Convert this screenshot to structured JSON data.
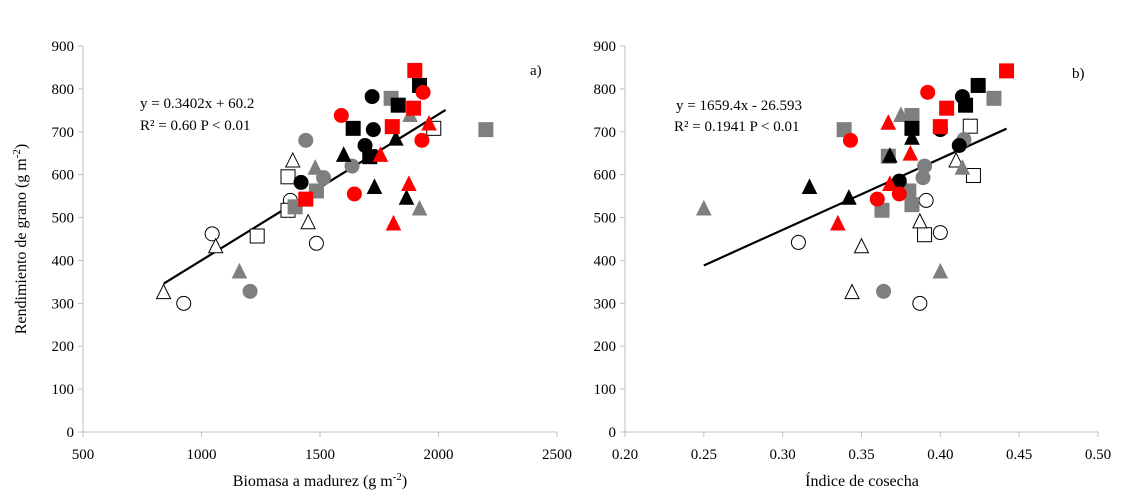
{
  "chart_data": [
    {
      "type": "scatter",
      "panel_label": "a)",
      "xlabel": "Biomasa  a madurez (g m",
      "xlabel_sup": "-2",
      "xlabel_close": ")",
      "ylabel": "Rendimiento de grano (g m",
      "ylabel_sup": "-2",
      "ylabel_close": ")",
      "xlim": [
        500,
        2500
      ],
      "ylim": [
        0,
        900
      ],
      "xticks": [
        500,
        1000,
        1500,
        2000,
        2500
      ],
      "yticks": [
        0,
        100,
        200,
        300,
        400,
        500,
        600,
        700,
        800,
        900
      ],
      "equation": "y = 0.3402x + 60.2",
      "r2_text": "R² = 0.60 P < 0.01",
      "trendline": {
        "x": [
          840,
          2030
        ],
        "y": [
          345.9,
          750.8
        ]
      },
      "points": [
        {
          "x": 925,
          "y": 300,
          "shape": "circle",
          "color": "open"
        },
        {
          "x": 1045,
          "y": 462,
          "shape": "circle",
          "color": "open"
        },
        {
          "x": 1375,
          "y": 540,
          "shape": "circle",
          "color": "open"
        },
        {
          "x": 1485,
          "y": 440,
          "shape": "circle",
          "color": "open"
        },
        {
          "x": 1235,
          "y": 457,
          "shape": "square",
          "color": "open"
        },
        {
          "x": 1365,
          "y": 595,
          "shape": "square",
          "color": "open"
        },
        {
          "x": 1365,
          "y": 517,
          "shape": "square",
          "color": "open"
        },
        {
          "x": 1980,
          "y": 708,
          "shape": "square",
          "color": "open"
        },
        {
          "x": 840,
          "y": 325,
          "shape": "triangle",
          "color": "open"
        },
        {
          "x": 1060,
          "y": 432,
          "shape": "triangle",
          "color": "open"
        },
        {
          "x": 1385,
          "y": 632,
          "shape": "triangle",
          "color": "open"
        },
        {
          "x": 1450,
          "y": 488,
          "shape": "triangle",
          "color": "open"
        },
        {
          "x": 1205,
          "y": 328,
          "shape": "circle",
          "color": "gray"
        },
        {
          "x": 1440,
          "y": 680,
          "shape": "circle",
          "color": "gray"
        },
        {
          "x": 1515,
          "y": 593,
          "shape": "circle",
          "color": "gray"
        },
        {
          "x": 1635,
          "y": 620,
          "shape": "circle",
          "color": "gray"
        },
        {
          "x": 1395,
          "y": 525,
          "shape": "square",
          "color": "gray"
        },
        {
          "x": 1485,
          "y": 562,
          "shape": "square",
          "color": "gray"
        },
        {
          "x": 1800,
          "y": 778,
          "shape": "square",
          "color": "gray"
        },
        {
          "x": 2200,
          "y": 705,
          "shape": "square",
          "color": "gray"
        },
        {
          "x": 1160,
          "y": 373,
          "shape": "triangle",
          "color": "gray"
        },
        {
          "x": 1480,
          "y": 615,
          "shape": "triangle",
          "color": "gray"
        },
        {
          "x": 1880,
          "y": 738,
          "shape": "triangle",
          "color": "gray"
        },
        {
          "x": 1920,
          "y": 520,
          "shape": "triangle",
          "color": "gray"
        },
        {
          "x": 1420,
          "y": 582,
          "shape": "circle",
          "color": "black"
        },
        {
          "x": 1690,
          "y": 668,
          "shape": "circle",
          "color": "black"
        },
        {
          "x": 1720,
          "y": 782,
          "shape": "circle",
          "color": "black"
        },
        {
          "x": 1725,
          "y": 705,
          "shape": "circle",
          "color": "black"
        },
        {
          "x": 1640,
          "y": 708,
          "shape": "square",
          "color": "black"
        },
        {
          "x": 1710,
          "y": 642,
          "shape": "square",
          "color": "black"
        },
        {
          "x": 1830,
          "y": 762,
          "shape": "square",
          "color": "black"
        },
        {
          "x": 1920,
          "y": 808,
          "shape": "square",
          "color": "black"
        },
        {
          "x": 1600,
          "y": 645,
          "shape": "triangle",
          "color": "black"
        },
        {
          "x": 1730,
          "y": 570,
          "shape": "triangle",
          "color": "black"
        },
        {
          "x": 1820,
          "y": 683,
          "shape": "triangle",
          "color": "black"
        },
        {
          "x": 1865,
          "y": 545,
          "shape": "triangle",
          "color": "black"
        },
        {
          "x": 1590,
          "y": 738,
          "shape": "circle",
          "color": "red"
        },
        {
          "x": 1645,
          "y": 555,
          "shape": "circle",
          "color": "red"
        },
        {
          "x": 1930,
          "y": 680,
          "shape": "circle",
          "color": "red"
        },
        {
          "x": 1935,
          "y": 792,
          "shape": "circle",
          "color": "red"
        },
        {
          "x": 1440,
          "y": 543,
          "shape": "square",
          "color": "red"
        },
        {
          "x": 1805,
          "y": 712,
          "shape": "square",
          "color": "red"
        },
        {
          "x": 1895,
          "y": 755,
          "shape": "square",
          "color": "red"
        },
        {
          "x": 1900,
          "y": 843,
          "shape": "square",
          "color": "red"
        },
        {
          "x": 1755,
          "y": 645,
          "shape": "triangle",
          "color": "red"
        },
        {
          "x": 1810,
          "y": 485,
          "shape": "triangle",
          "color": "red"
        },
        {
          "x": 1875,
          "y": 577,
          "shape": "triangle",
          "color": "red"
        },
        {
          "x": 1960,
          "y": 718,
          "shape": "triangle",
          "color": "red"
        }
      ]
    },
    {
      "type": "scatter",
      "panel_label": "b)",
      "xlabel": "Índice  de cosecha",
      "xlim": [
        0.2,
        0.5
      ],
      "ylim": [
        0,
        900
      ],
      "xticks": [
        "0.20",
        "0.25",
        "0.30",
        "0.35",
        "0.40",
        "0.45",
        "0.50"
      ],
      "yticks": [
        0,
        100,
        200,
        300,
        400,
        500,
        600,
        700,
        800,
        900
      ],
      "equation": "y = 1659.4x - 26.593",
      "r2_text": "R² = 0.1941 P < 0.01",
      "trendline": {
        "x": [
          0.25,
          0.442
        ],
        "y": [
          388.3,
          707.2
        ]
      },
      "points": [
        {
          "x": 0.31,
          "y": 442,
          "shape": "circle",
          "color": "open"
        },
        {
          "x": 0.387,
          "y": 300,
          "shape": "circle",
          "color": "open"
        },
        {
          "x": 0.391,
          "y": 540,
          "shape": "circle",
          "color": "open"
        },
        {
          "x": 0.4,
          "y": 465,
          "shape": "circle",
          "color": "open"
        },
        {
          "x": 0.39,
          "y": 460,
          "shape": "square",
          "color": "open"
        },
        {
          "x": 0.419,
          "y": 713,
          "shape": "square",
          "color": "open"
        },
        {
          "x": 0.421,
          "y": 598,
          "shape": "square",
          "color": "open"
        },
        {
          "x": 0.344,
          "y": 325,
          "shape": "triangle",
          "color": "open"
        },
        {
          "x": 0.35,
          "y": 432,
          "shape": "triangle",
          "color": "open"
        },
        {
          "x": 0.387,
          "y": 490,
          "shape": "triangle",
          "color": "open"
        },
        {
          "x": 0.41,
          "y": 632,
          "shape": "triangle",
          "color": "open"
        },
        {
          "x": 0.364,
          "y": 328,
          "shape": "circle",
          "color": "gray"
        },
        {
          "x": 0.389,
          "y": 593,
          "shape": "circle",
          "color": "gray"
        },
        {
          "x": 0.39,
          "y": 620,
          "shape": "circle",
          "color": "gray"
        },
        {
          "x": 0.415,
          "y": 682,
          "shape": "circle",
          "color": "gray"
        },
        {
          "x": 0.339,
          "y": 705,
          "shape": "square",
          "color": "gray"
        },
        {
          "x": 0.367,
          "y": 643,
          "shape": "square",
          "color": "gray"
        },
        {
          "x": 0.38,
          "y": 562,
          "shape": "square",
          "color": "gray"
        },
        {
          "x": 0.382,
          "y": 738,
          "shape": "square",
          "color": "gray"
        },
        {
          "x": 0.434,
          "y": 778,
          "shape": "square",
          "color": "gray"
        },
        {
          "x": 0.25,
          "y": 520,
          "shape": "triangle",
          "color": "gray"
        },
        {
          "x": 0.375,
          "y": 738,
          "shape": "triangle",
          "color": "gray"
        },
        {
          "x": 0.4,
          "y": 373,
          "shape": "triangle",
          "color": "gray"
        },
        {
          "x": 0.414,
          "y": 615,
          "shape": "triangle",
          "color": "gray"
        },
        {
          "x": 0.374,
          "y": 585,
          "shape": "circle",
          "color": "black"
        },
        {
          "x": 0.4,
          "y": 705,
          "shape": "circle",
          "color": "black"
        },
        {
          "x": 0.412,
          "y": 668,
          "shape": "circle",
          "color": "black"
        },
        {
          "x": 0.414,
          "y": 782,
          "shape": "circle",
          "color": "black"
        },
        {
          "x": 0.363,
          "y": 517,
          "shape": "square",
          "color": "gray"
        },
        {
          "x": 0.382,
          "y": 530,
          "shape": "square",
          "color": "gray"
        },
        {
          "x": 0.382,
          "y": 708,
          "shape": "square",
          "color": "black"
        },
        {
          "x": 0.416,
          "y": 762,
          "shape": "square",
          "color": "black"
        },
        {
          "x": 0.424,
          "y": 808,
          "shape": "square",
          "color": "black"
        },
        {
          "x": 0.317,
          "y": 570,
          "shape": "triangle",
          "color": "black"
        },
        {
          "x": 0.342,
          "y": 545,
          "shape": "triangle",
          "color": "black"
        },
        {
          "x": 0.368,
          "y": 643,
          "shape": "triangle",
          "color": "black"
        },
        {
          "x": 0.382,
          "y": 685,
          "shape": "triangle",
          "color": "black"
        },
        {
          "x": 0.343,
          "y": 680,
          "shape": "circle",
          "color": "red"
        },
        {
          "x": 0.36,
          "y": 543,
          "shape": "circle",
          "color": "red"
        },
        {
          "x": 0.374,
          "y": 555,
          "shape": "circle",
          "color": "red"
        },
        {
          "x": 0.392,
          "y": 792,
          "shape": "circle",
          "color": "red"
        },
        {
          "x": 0.4,
          "y": 712,
          "shape": "square",
          "color": "red"
        },
        {
          "x": 0.404,
          "y": 755,
          "shape": "square",
          "color": "red"
        },
        {
          "x": 0.442,
          "y": 842,
          "shape": "square",
          "color": "red"
        },
        {
          "x": 0.335,
          "y": 485,
          "shape": "triangle",
          "color": "red"
        },
        {
          "x": 0.367,
          "y": 720,
          "shape": "triangle",
          "color": "red"
        },
        {
          "x": 0.368,
          "y": 577,
          "shape": "triangle",
          "color": "red"
        },
        {
          "x": 0.381,
          "y": 648,
          "shape": "triangle",
          "color": "red"
        }
      ]
    }
  ],
  "colors": {
    "red": "#ff0000",
    "black": "#000000",
    "gray": "#7f7f7f",
    "open": "#ffffff",
    "axis": "#bfbfbf"
  }
}
